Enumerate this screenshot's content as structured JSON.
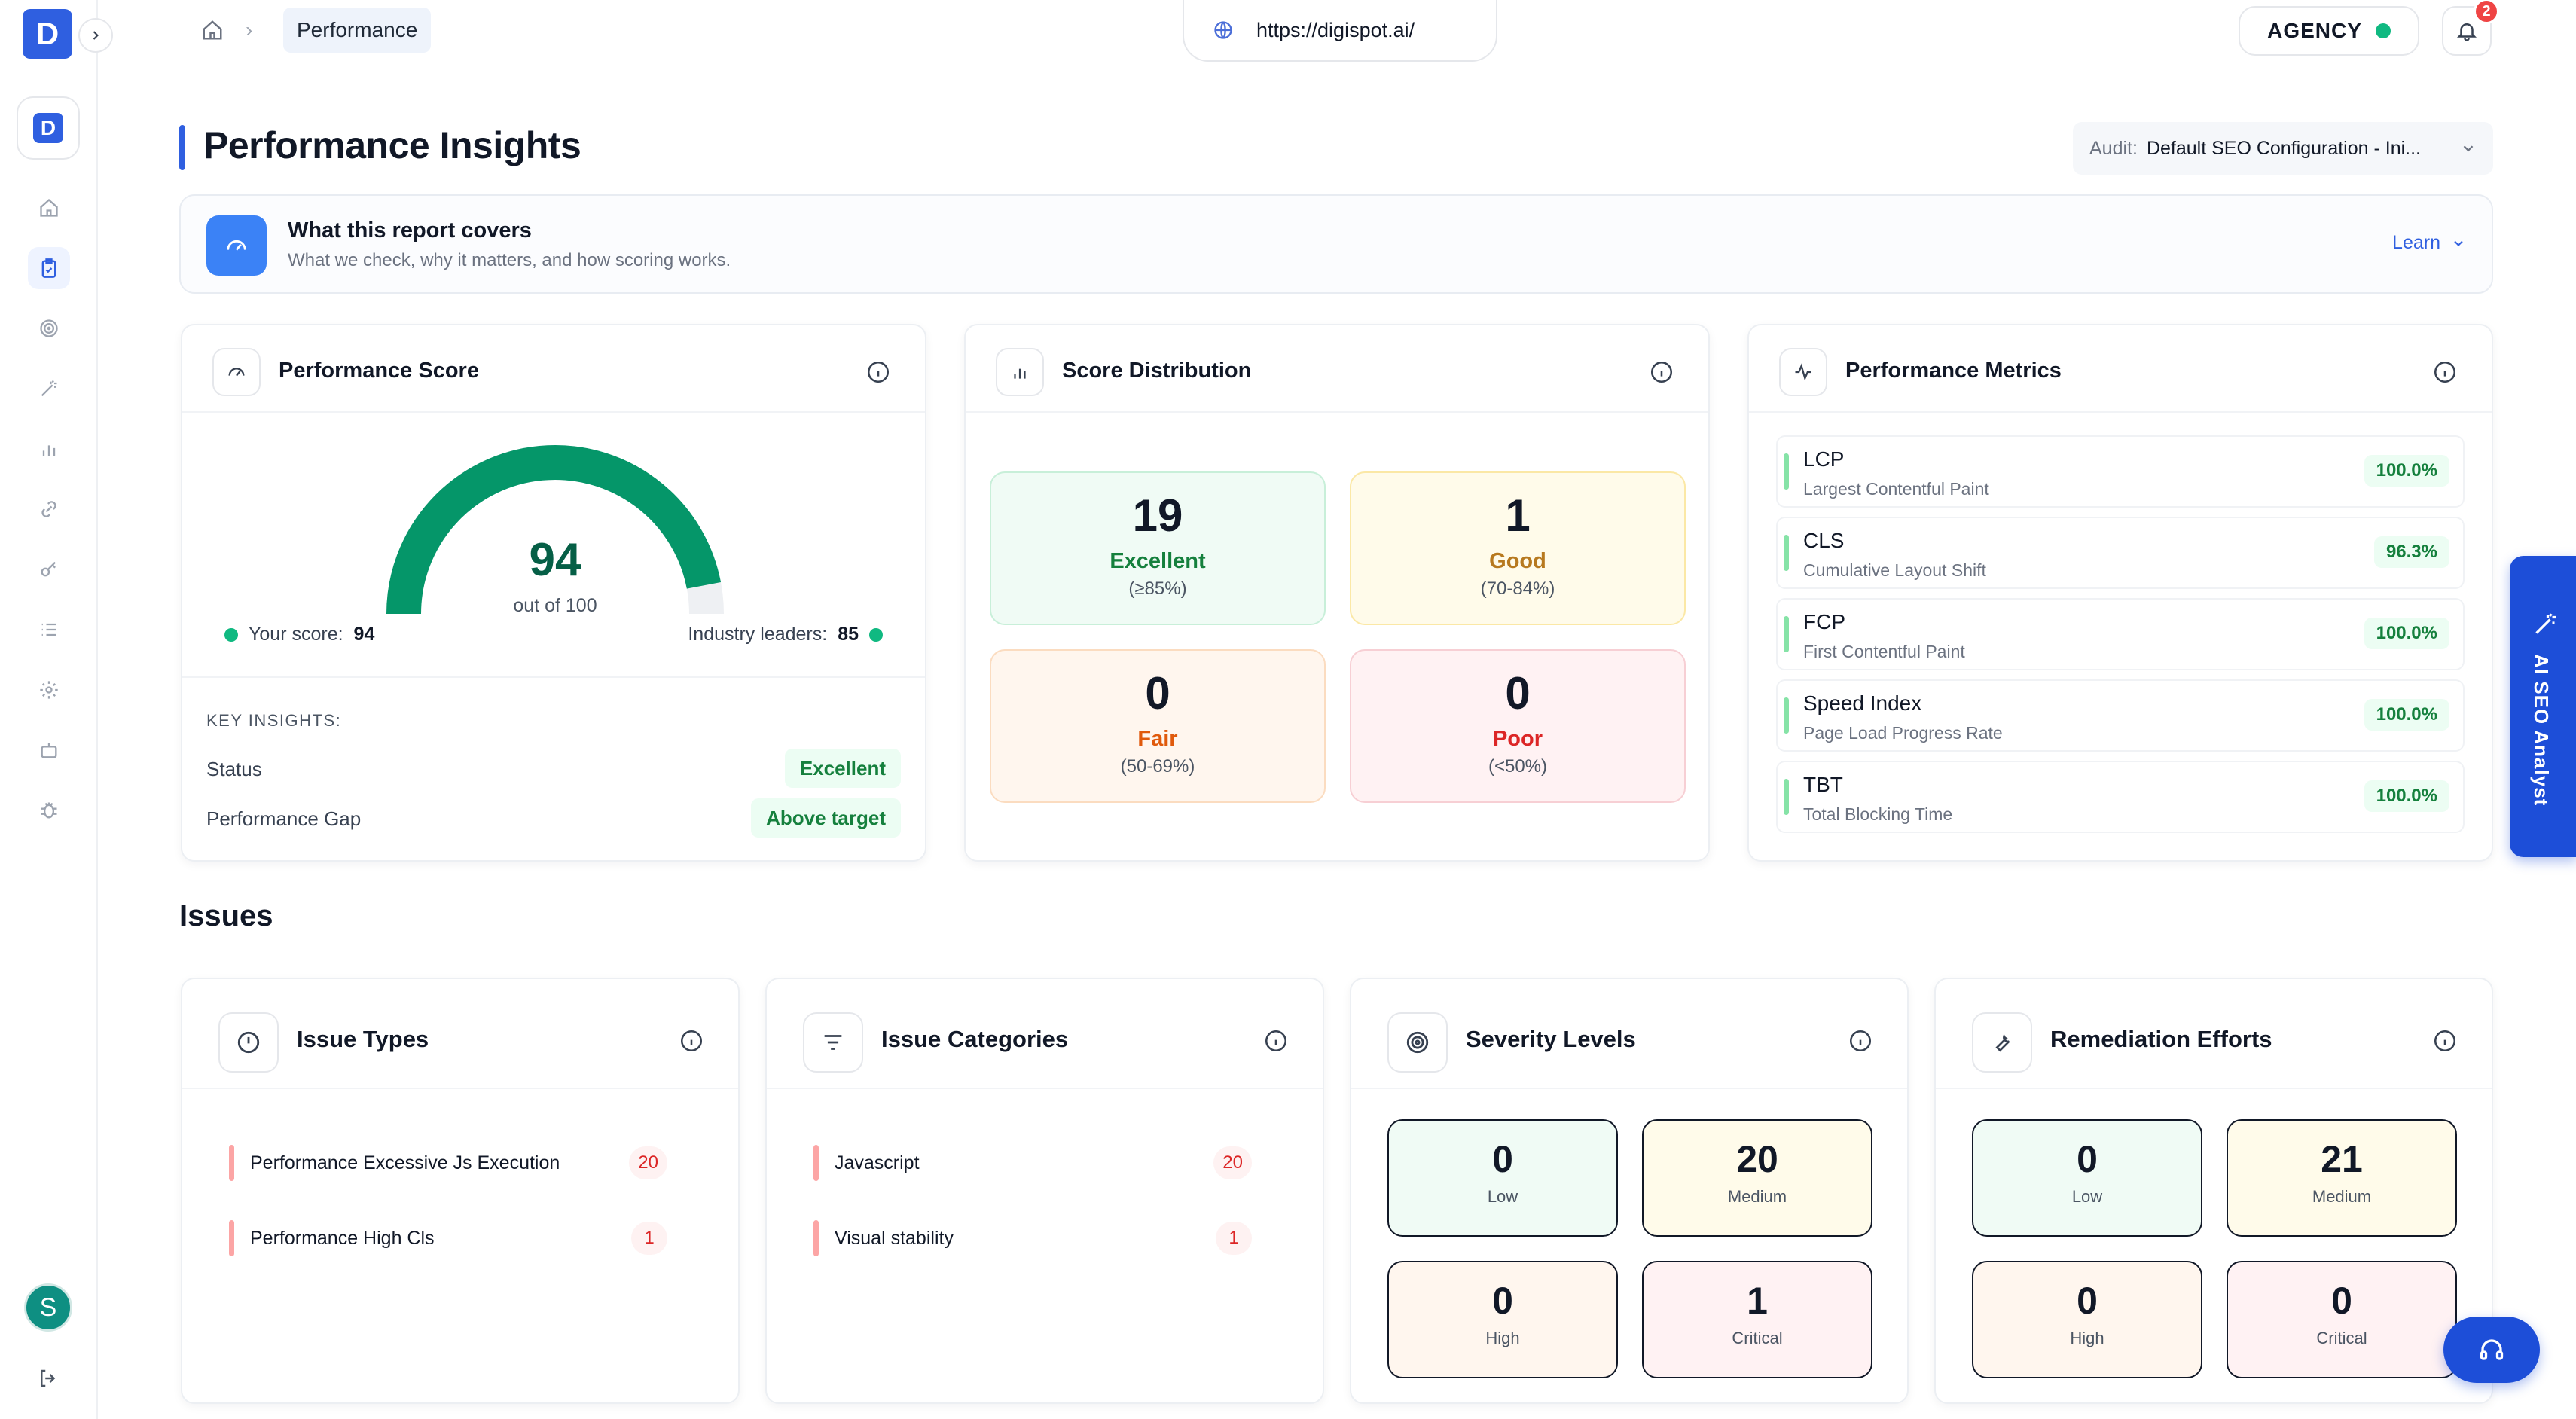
{
  "sidebar": {
    "brand_letter": "D",
    "logo_letter": "D",
    "nav": [
      {
        "icon": "home-icon"
      },
      {
        "icon": "clipboard-check-icon"
      },
      {
        "icon": "target-icon"
      },
      {
        "icon": "magic-wand-icon"
      },
      {
        "icon": "bar-chart-icon"
      },
      {
        "icon": "link-icon"
      },
      {
        "icon": "key-icon"
      },
      {
        "icon": "list-icon"
      },
      {
        "icon": "gear-icon"
      },
      {
        "icon": "robot-icon"
      },
      {
        "icon": "bug-icon"
      }
    ],
    "avatar_letter": "S"
  },
  "topbar": {
    "breadcrumb_current": "Performance",
    "url": "https://digispot.ai/",
    "plan": "AGENCY",
    "notification_count": "2"
  },
  "page": {
    "title": "Performance Insights",
    "audit_label": "Audit:",
    "audit_value": "Default SEO Configuration - Ini..."
  },
  "covers": {
    "title": "What this report covers",
    "subtitle": "What we check, why it matters, and how scoring works.",
    "learn": "Learn"
  },
  "score_card": {
    "title": "Performance Score",
    "score": "94",
    "out_of": "out of 100",
    "score_fraction": 0.94,
    "your_score_label": "Your score:",
    "your_score": "94",
    "leaders_label": "Industry leaders:",
    "leaders": "85",
    "insights_title": "KEY INSIGHTS:",
    "insights": [
      {
        "label": "Status",
        "value": "Excellent"
      },
      {
        "label": "Performance Gap",
        "value": "Above target"
      }
    ]
  },
  "distribution": {
    "title": "Score Distribution",
    "tiles": [
      {
        "count": "19",
        "label": "Excellent",
        "range": "(≥85%)"
      },
      {
        "count": "1",
        "label": "Good",
        "range": "(70-84%)"
      },
      {
        "count": "0",
        "label": "Fair",
        "range": "(50-69%)"
      },
      {
        "count": "0",
        "label": "Poor",
        "range": "(<50%)"
      }
    ]
  },
  "metrics": {
    "title": "Performance Metrics",
    "items": [
      {
        "name": "LCP",
        "desc": "Largest Contentful Paint",
        "value": "100.0%"
      },
      {
        "name": "CLS",
        "desc": "Cumulative Layout Shift",
        "value": "96.3%"
      },
      {
        "name": "FCP",
        "desc": "First Contentful Paint",
        "value": "100.0%"
      },
      {
        "name": "Speed Index",
        "desc": "Page Load Progress Rate",
        "value": "100.0%"
      },
      {
        "name": "TBT",
        "desc": "Total Blocking Time",
        "value": "100.0%"
      }
    ]
  },
  "issues": {
    "title": "Issues",
    "types": {
      "title": "Issue Types",
      "rows": [
        {
          "label": "Performance Excessive Js Execution",
          "count": "20"
        },
        {
          "label": "Performance High Cls",
          "count": "1"
        }
      ]
    },
    "categories": {
      "title": "Issue Categories",
      "rows": [
        {
          "label": "Javascript",
          "count": "20"
        },
        {
          "label": "Visual stability",
          "count": "1"
        }
      ]
    },
    "severity": {
      "title": "Severity Levels",
      "tiles": [
        {
          "count": "0",
          "label": "Low"
        },
        {
          "count": "20",
          "label": "Medium"
        },
        {
          "count": "0",
          "label": "High"
        },
        {
          "count": "1",
          "label": "Critical"
        }
      ]
    },
    "remediation": {
      "title": "Remediation Efforts",
      "tiles": [
        {
          "count": "0",
          "label": "Low"
        },
        {
          "count": "21",
          "label": "Medium"
        },
        {
          "count": "0",
          "label": "High"
        },
        {
          "count": "0",
          "label": "Critical"
        }
      ]
    }
  },
  "ai_tab": {
    "label": "AI SEO Analyst"
  },
  "colors": {
    "brand": "#2f5fe0",
    "gauge_green": "#059669",
    "status_green": "#10b981",
    "issue_red": "#dc2626"
  }
}
